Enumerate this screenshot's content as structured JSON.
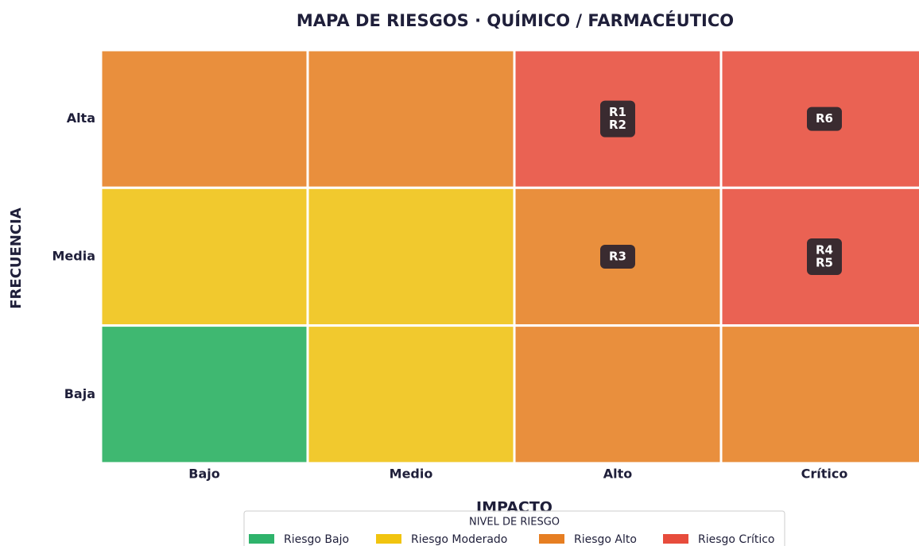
{
  "chart_data": {
    "type": "heatmap",
    "title": "MAPA DE RIESGOS  ·  QUÍMICO / FARMACÉUTICO",
    "x_label": "IMPACTO",
    "y_label": "FRECUENCIA",
    "x_categories": [
      "Bajo",
      "Medio",
      "Alto",
      "Crítico"
    ],
    "y_categories": [
      "Alta",
      "Media",
      "Baja"
    ],
    "cell_colors": [
      [
        "#e98f3d",
        "#e98f3d",
        "#ea6253",
        "#ea6253"
      ],
      [
        "#f1c92e",
        "#f1c92e",
        "#e98f3d",
        "#ea6253"
      ],
      [
        "#3fb871",
        "#f1c92e",
        "#e98f3d",
        "#e98f3d"
      ]
    ],
    "risks": [
      {
        "name": "R1",
        "x": "Alto",
        "y": "Alta"
      },
      {
        "name": "R2",
        "x": "Alto",
        "y": "Alta"
      },
      {
        "name": "R3",
        "x": "Alto",
        "y": "Media"
      },
      {
        "name": "R4",
        "x": "Crítico",
        "y": "Media"
      },
      {
        "name": "R5",
        "x": "Crítico",
        "y": "Media"
      },
      {
        "name": "R6",
        "x": "Crítico",
        "y": "Alta"
      }
    ],
    "legend": {
      "title": "NIVEL DE RIESGO",
      "items": [
        {
          "name": "Riesgo Bajo",
          "color": "#2eb36b"
        },
        {
          "name": "Riesgo Moderado",
          "color": "#f1c40f"
        },
        {
          "name": "Riesgo Alto",
          "color": "#e67e22"
        },
        {
          "name": "Riesgo Crítico",
          "color": "#e74c3c"
        }
      ]
    }
  }
}
